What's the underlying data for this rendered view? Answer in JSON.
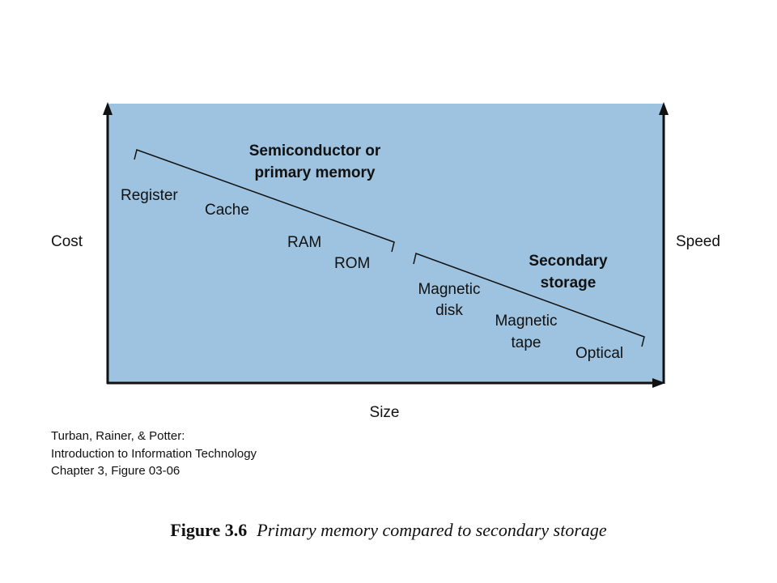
{
  "diagram": {
    "axes": {
      "left": "Cost",
      "right": "Speed",
      "bottom": "Size"
    },
    "groups": [
      {
        "title": [
          "Semiconductor or",
          "primary memory"
        ],
        "items": [
          [
            "Register"
          ],
          [
            "Cache"
          ],
          [
            "RAM"
          ],
          [
            "ROM"
          ]
        ]
      },
      {
        "title": [
          "Secondary",
          "storage"
        ],
        "items": [
          [
            "Magnetic",
            "disk"
          ],
          [
            "Magnetic",
            "tape"
          ],
          [
            "Optical"
          ]
        ]
      }
    ]
  },
  "credit": [
    "Turban, Rainer, & Potter:",
    "Introduction to Information Technology",
    "Chapter 3, Figure 03-06"
  ],
  "caption": {
    "label": "Figure 3.6",
    "text": "Primary memory compared to secondary storage"
  }
}
